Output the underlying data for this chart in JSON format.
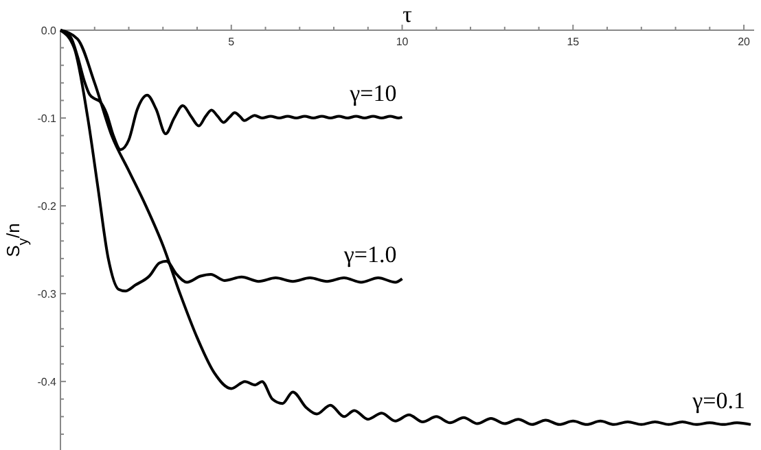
{
  "chart_data": {
    "type": "line",
    "xlabel": "τ",
    "ylabel": "S$_{y}$/n",
    "xlim": [
      0,
      20.3
    ],
    "ylim": [
      -0.478,
      0
    ],
    "xticks": [
      {
        "value": 1,
        "label": null
      },
      {
        "value": 2,
        "label": null
      },
      {
        "value": 3,
        "label": null
      },
      {
        "value": 4,
        "label": null
      },
      5,
      {
        "value": 6,
        "label": null
      },
      {
        "value": 7,
        "label": null
      },
      {
        "value": 8,
        "label": null
      },
      {
        "value": 9,
        "label": null
      },
      10,
      {
        "value": 11,
        "label": null
      },
      {
        "value": 12,
        "label": null
      },
      {
        "value": 13,
        "label": null
      },
      {
        "value": 14,
        "label": null
      },
      15,
      {
        "value": 16,
        "label": null
      },
      {
        "value": 17,
        "label": null
      },
      {
        "value": 18,
        "label": null
      },
      {
        "value": 19,
        "label": null
      },
      20
    ],
    "yticks": [
      {
        "value": 0,
        "label": "0.0"
      },
      {
        "value": -0.02,
        "label": null
      },
      {
        "value": -0.04,
        "label": null
      },
      {
        "value": -0.06,
        "label": null
      },
      {
        "value": -0.08,
        "label": null
      },
      {
        "value": -0.1,
        "label": "-0.1"
      },
      {
        "value": -0.12,
        "label": null
      },
      {
        "value": -0.14,
        "label": null
      },
      {
        "value": -0.16,
        "label": null
      },
      {
        "value": -0.18,
        "label": null
      },
      {
        "value": -0.2,
        "label": "-0.2"
      },
      {
        "value": -0.22,
        "label": null
      },
      {
        "value": -0.24,
        "label": null
      },
      {
        "value": -0.26,
        "label": null
      },
      {
        "value": -0.28,
        "label": null
      },
      {
        "value": -0.3,
        "label": "-0.3"
      },
      {
        "value": -0.32,
        "label": null
      },
      {
        "value": -0.34,
        "label": null
      },
      {
        "value": -0.36,
        "label": null
      },
      {
        "value": -0.38,
        "label": null
      },
      {
        "value": -0.4,
        "label": "-0.4"
      },
      {
        "value": -0.42,
        "label": null
      },
      {
        "value": -0.44,
        "label": null
      },
      {
        "value": -0.46,
        "label": null
      }
    ],
    "grid": false,
    "marker": "none",
    "line_style": "solid",
    "series": [
      {
        "name": "γ=10",
        "color": "#000000",
        "x": [
          0,
          0.3,
          0.5,
          0.7,
          0.85,
          1.0,
          1.15,
          1.35,
          1.55,
          1.76,
          2.0,
          2.25,
          2.54,
          2.8,
          3.08,
          3.33,
          3.58,
          3.82,
          4.05,
          4.25,
          4.42,
          4.6,
          4.77,
          4.95,
          5.1,
          5.25,
          5.38,
          5.53,
          5.68,
          5.9,
          6.15,
          6.4,
          6.65,
          6.9,
          7.15,
          7.4,
          7.65,
          7.9,
          8.15,
          8.4,
          8.65,
          8.9,
          9.15,
          9.4,
          9.65,
          9.9,
          10.0
        ],
        "values": [
          0,
          -0.008,
          -0.03,
          -0.058,
          -0.073,
          -0.078,
          -0.081,
          -0.095,
          -0.12,
          -0.136,
          -0.125,
          -0.09,
          -0.074,
          -0.09,
          -0.118,
          -0.1,
          -0.086,
          -0.098,
          -0.109,
          -0.098,
          -0.091,
          -0.098,
          -0.105,
          -0.099,
          -0.094,
          -0.098,
          -0.103,
          -0.1,
          -0.097,
          -0.1,
          -0.098,
          -0.1,
          -0.098,
          -0.1,
          -0.098,
          -0.1,
          -0.098,
          -0.1,
          -0.098,
          -0.1,
          -0.098,
          -0.1,
          -0.098,
          -0.1,
          -0.098,
          -0.1,
          -0.099
        ]
      },
      {
        "name": "γ=1.0",
        "color": "#000000",
        "x": [
          0,
          0.4,
          0.8,
          1.1,
          1.4,
          1.7,
          1.9,
          2.2,
          2.6,
          2.9,
          3.1,
          3.4,
          3.7,
          4.1,
          4.4,
          4.8,
          5.3,
          5.8,
          6.3,
          6.8,
          7.3,
          7.8,
          8.3,
          8.8,
          9.3,
          9.8,
          10.0
        ],
        "values": [
          0,
          -0.02,
          -0.1,
          -0.18,
          -0.26,
          -0.295,
          -0.297,
          -0.29,
          -0.28,
          -0.265,
          -0.263,
          -0.278,
          -0.287,
          -0.28,
          -0.278,
          -0.285,
          -0.281,
          -0.286,
          -0.282,
          -0.286,
          -0.282,
          -0.286,
          -0.282,
          -0.287,
          -0.282,
          -0.287,
          -0.283
        ]
      },
      {
        "name": "γ=0.1",
        "color": "#000000",
        "x": [
          0,
          0.5,
          1,
          1.5,
          2,
          2.5,
          3,
          3.5,
          4,
          4.5,
          5,
          5.4,
          5.7,
          5.9,
          6.2,
          6.5,
          6.8,
          7.2,
          7.5,
          7.9,
          8.3,
          8.6,
          9.0,
          9.4,
          9.8,
          10.2,
          10.6,
          11.0,
          11.4,
          11.8,
          12.2,
          12.6,
          13.0,
          13.4,
          13.8,
          14.2,
          14.6,
          15.0,
          15.4,
          15.8,
          16.2,
          16.6,
          17.0,
          17.4,
          17.8,
          18.2,
          18.6,
          19.0,
          19.4,
          19.8,
          20.2
        ],
        "values": [
          0,
          -0.01,
          -0.06,
          -0.12,
          -0.16,
          -0.2,
          -0.245,
          -0.3,
          -0.35,
          -0.39,
          -0.408,
          -0.4,
          -0.404,
          -0.4,
          -0.42,
          -0.425,
          -0.412,
          -0.43,
          -0.437,
          -0.427,
          -0.44,
          -0.433,
          -0.443,
          -0.436,
          -0.445,
          -0.438,
          -0.446,
          -0.44,
          -0.447,
          -0.441,
          -0.448,
          -0.442,
          -0.448,
          -0.443,
          -0.449,
          -0.444,
          -0.449,
          -0.445,
          -0.449,
          -0.445,
          -0.449,
          -0.446,
          -0.449,
          -0.446,
          -0.449,
          -0.446,
          -0.449,
          -0.447,
          -0.449,
          -0.447,
          -0.449
        ]
      }
    ]
  }
}
